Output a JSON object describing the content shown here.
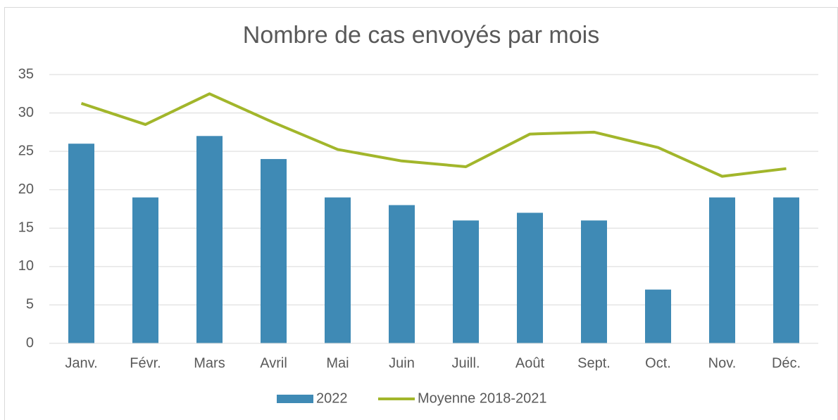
{
  "chart_data": {
    "type": "bar",
    "title": "Nombre de cas envoyés par mois",
    "categories": [
      "Janv.",
      "Févr.",
      "Mars",
      "Avril",
      "Mai",
      "Juin",
      "Juill.",
      "Août",
      "Sept.",
      "Oct.",
      "Nov.",
      "Déc."
    ],
    "series": [
      {
        "name": "2022",
        "type": "bar",
        "color": "#3f8ab5",
        "values": [
          26,
          19,
          27,
          24,
          19,
          18,
          16,
          17,
          16,
          7,
          19,
          19
        ]
      },
      {
        "name": "Moyenne 2018-2021",
        "type": "line",
        "color": "#a2b62b",
        "values": [
          31.25,
          28.5,
          32.5,
          28.75,
          25.25,
          23.75,
          23,
          27.25,
          27.5,
          25.5,
          21.75,
          22.75
        ]
      }
    ],
    "ylim": [
      0,
      35
    ],
    "yticks": [
      0,
      5,
      10,
      15,
      20,
      25,
      30,
      35
    ],
    "grid": true,
    "legend": "bottom"
  }
}
